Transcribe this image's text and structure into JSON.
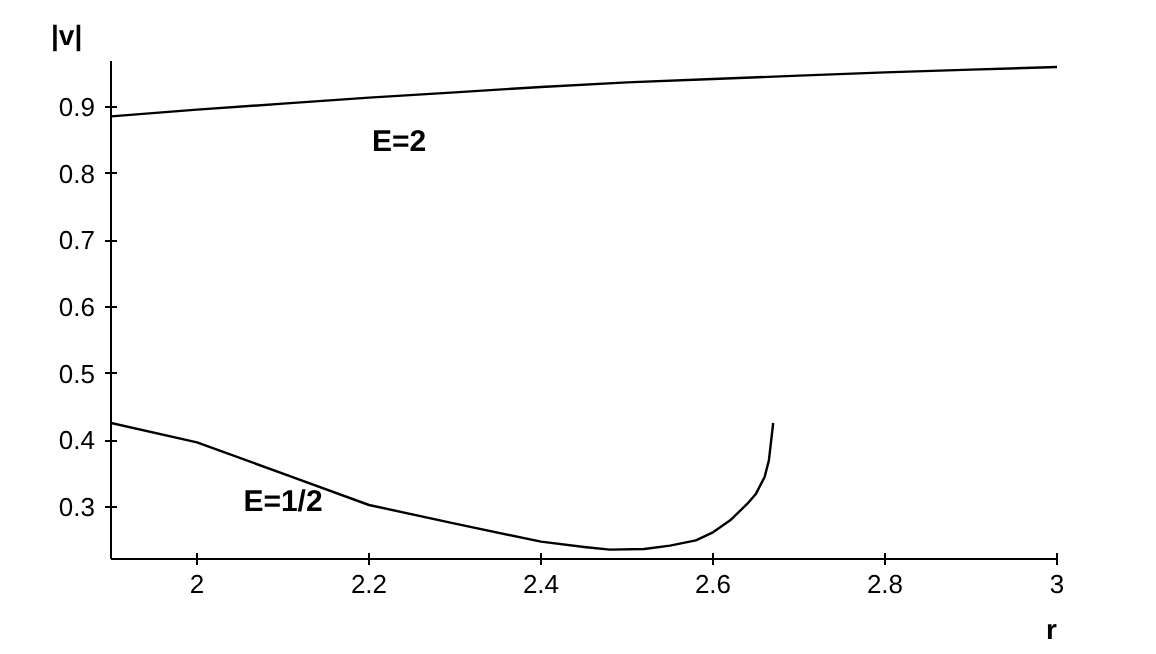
{
  "chart_data": {
    "type": "line",
    "xlabel": "r",
    "ylabel": "|v|",
    "xlim": [
      1.9,
      3.0
    ],
    "ylim": [
      0.222,
      0.969
    ],
    "xticks": [
      2,
      2.2,
      2.4,
      2.6,
      2.8,
      3
    ],
    "yticks": [
      0.3,
      0.4,
      0.5,
      0.6,
      0.7,
      0.8,
      0.9
    ],
    "grid": false,
    "series": [
      {
        "x": [
          1.9,
          2.0,
          2.1,
          2.2,
          2.3,
          2.4,
          2.5,
          2.6,
          2.7,
          2.8,
          2.9,
          3.0
        ],
        "values": [
          0.886,
          0.896,
          0.905,
          0.914,
          0.922,
          0.93,
          0.937,
          0.942,
          0.947,
          0.952,
          0.956,
          0.96
        ],
        "color": "#000000"
      },
      {
        "x": [
          1.9,
          2.0,
          2.1,
          2.2,
          2.3,
          2.4,
          2.45,
          2.48,
          2.52,
          2.55,
          2.58,
          2.6,
          2.62,
          2.64,
          2.65,
          2.66,
          2.665,
          2.67
        ],
        "values": [
          0.426,
          0.397,
          0.35,
          0.303,
          0.275,
          0.248,
          0.24,
          0.236,
          0.237,
          0.242,
          0.25,
          0.262,
          0.28,
          0.305,
          0.32,
          0.345,
          0.37,
          0.426
        ],
        "color": "#000000"
      }
    ],
    "annotations": [
      "E=2",
      "E=1/2"
    ]
  }
}
